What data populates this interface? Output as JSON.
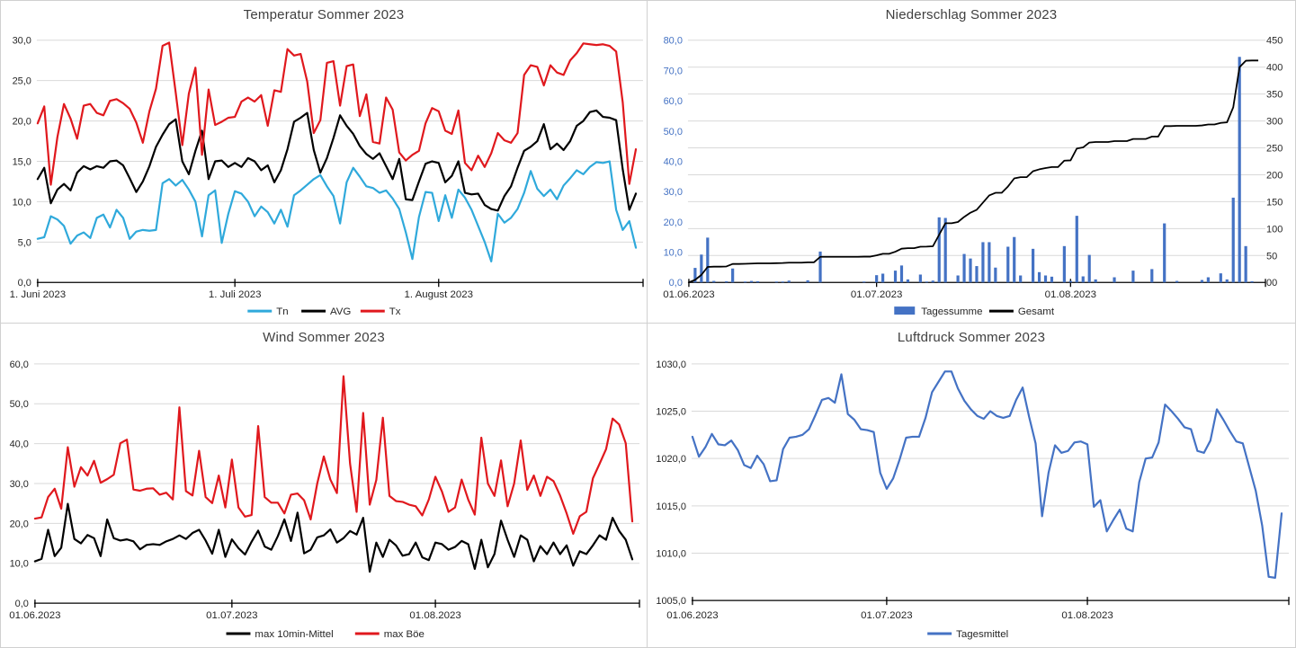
{
  "page": {
    "background": "#ffffff",
    "grid": "2x2 weather charts"
  },
  "colors": {
    "grid_line": "#d9d9d9",
    "axis_line": "#000000",
    "title_text": "#404040",
    "tick_text": "#262626",
    "tn_cyan": "#2fa9db",
    "avg_black": "#000000",
    "tx_red": "#e0181d",
    "bar_blue": "#4472c4",
    "pressure_blue": "#4472c4"
  },
  "chart_data": [
    {
      "id": "temperatur",
      "type": "line",
      "title": "Temperatur Sommer 2023",
      "x": {
        "tick_labels": [
          "1. Juni 2023",
          "1. Juli 2023",
          "1. August 2023"
        ],
        "tick_days": [
          0,
          30,
          61
        ],
        "n_days": 92
      },
      "y": {
        "min": 0,
        "max": 30,
        "grid_intervals": 6,
        "tick_labels": [
          "0,0",
          "5,0",
          "10,0",
          "15,0",
          "20,0",
          "25,0",
          "30,0"
        ]
      },
      "legend": [
        {
          "label": "Tn",
          "color": "#2fa9db",
          "marker": "line"
        },
        {
          "label": "AVG",
          "color": "#000000",
          "marker": "line"
        },
        {
          "label": "Tx",
          "color": "#e0181d",
          "marker": "line"
        }
      ],
      "series": [
        {
          "name": "Tn",
          "color": "#2fa9db",
          "width": 2.2,
          "values": [
            5.4,
            5.6,
            8.2,
            7.8,
            7.0,
            4.8,
            5.8,
            6.2,
            5.5,
            8.0,
            8.4,
            6.8,
            9.0,
            8.0,
            5.4,
            6.3,
            6.5,
            6.4,
            6.5,
            12.3,
            12.8,
            12.0,
            12.7,
            11.5,
            10.0,
            5.7,
            10.8,
            11.4,
            4.9,
            8.5,
            11.3,
            11.0,
            10.0,
            8.2,
            9.4,
            8.7,
            7.3,
            9.0,
            6.9,
            10.8,
            11.4,
            12.1,
            12.8,
            13.3,
            11.9,
            10.7,
            7.3,
            12.4,
            14.2,
            13.1,
            11.9,
            11.7,
            11.1,
            11.4,
            10.4,
            9.1,
            6.2,
            2.9,
            8.1,
            11.2,
            11.1,
            7.6,
            10.8,
            8.0,
            11.5,
            10.5,
            9.0,
            7.0,
            5.0,
            2.6,
            8.5,
            7.4,
            8.0,
            9.1,
            11.1,
            13.8,
            11.6,
            10.7,
            11.5,
            10.3,
            12.0,
            12.9,
            13.9,
            13.4,
            14.3,
            14.9,
            14.8,
            15.0,
            9.0,
            6.5,
            7.6,
            4.3
          ]
        },
        {
          "name": "AVG",
          "color": "#000000",
          "width": 2.2,
          "values": [
            12.8,
            14.2,
            9.8,
            11.5,
            12.2,
            11.4,
            13.6,
            14.4,
            14.0,
            14.4,
            14.2,
            15.0,
            15.1,
            14.5,
            12.9,
            11.2,
            12.5,
            14.4,
            16.8,
            18.3,
            19.6,
            20.2,
            15.0,
            13.4,
            16.3,
            18.8,
            12.8,
            15.0,
            15.1,
            14.3,
            14.8,
            14.3,
            15.4,
            15.0,
            13.9,
            14.5,
            12.4,
            13.9,
            16.5,
            19.9,
            20.4,
            21.0,
            16.4,
            13.6,
            15.4,
            17.9,
            20.7,
            19.4,
            18.4,
            16.9,
            15.9,
            15.3,
            16.0,
            14.4,
            12.8,
            15.3,
            10.3,
            10.2,
            12.5,
            14.7,
            15.0,
            14.8,
            12.4,
            13.2,
            15.0,
            11.1,
            10.9,
            11.0,
            9.6,
            9.1,
            8.9,
            10.7,
            11.9,
            14.2,
            16.3,
            16.8,
            17.5,
            19.6,
            16.5,
            17.2,
            16.4,
            17.5,
            19.4,
            20.0,
            21.1,
            21.3,
            20.5,
            20.4,
            20.1,
            14.0,
            9.0,
            11.0
          ]
        },
        {
          "name": "Tx",
          "color": "#e0181d",
          "width": 2.2,
          "values": [
            19.7,
            21.8,
            12.1,
            18.0,
            22.1,
            20.3,
            17.8,
            21.9,
            22.1,
            21.0,
            20.7,
            22.5,
            22.7,
            22.2,
            21.5,
            19.8,
            17.3,
            21.2,
            24.0,
            29.3,
            29.7,
            23.5,
            17.0,
            23.4,
            26.6,
            15.8,
            23.9,
            19.5,
            19.9,
            20.4,
            20.5,
            22.4,
            22.9,
            22.4,
            23.2,
            19.4,
            23.8,
            23.6,
            28.9,
            28.1,
            28.3,
            24.9,
            18.5,
            20.1,
            27.2,
            27.4,
            21.9,
            26.8,
            27.0,
            20.6,
            23.3,
            17.4,
            17.2,
            22.9,
            21.4,
            16.1,
            15.1,
            15.8,
            16.3,
            19.7,
            21.6,
            21.2,
            18.8,
            18.4,
            21.3,
            14.8,
            13.9,
            15.7,
            14.3,
            16.0,
            18.5,
            17.6,
            17.3,
            18.5,
            25.7,
            26.9,
            26.7,
            24.4,
            26.9,
            26.0,
            25.7,
            27.5,
            28.4,
            29.6,
            29.5,
            29.4,
            29.5,
            29.3,
            28.6,
            22.3,
            12.2,
            16.5
          ]
        }
      ]
    },
    {
      "id": "niederschlag",
      "type": "bar+cumulative-line",
      "title": "Niederschlag Sommer 2023",
      "x": {
        "tick_labels": [
          "01.06.2023",
          "01.07.2023",
          "01.08.2023"
        ],
        "tick_days": [
          0,
          30,
          61
        ],
        "n_days": 92
      },
      "y_left": {
        "min": 0,
        "max": 80,
        "label_color": "#4472c4",
        "tick_labels": [
          "0,0",
          "10,0",
          "20,0",
          "30,0",
          "40,0",
          "50,0",
          "60,0",
          "70,0",
          "80,0"
        ]
      },
      "y_right": {
        "min": 0,
        "max": 450,
        "grid_intervals": 9,
        "tick_labels": [
          "00",
          "50",
          "100",
          "150",
          "200",
          "250",
          "300",
          "350",
          "400",
          "450"
        ]
      },
      "legend": [
        {
          "label": "Tagessumme",
          "color": "#4472c4",
          "marker": "rect"
        },
        {
          "label": "Gesamt",
          "color": "#000000",
          "marker": "line"
        }
      ],
      "bars": {
        "name": "Tagessumme",
        "color": "#4472c4",
        "axis": "left",
        "values": [
          0,
          4.8,
          9.2,
          14.8,
          0.5,
          0,
          0.4,
          4.6,
          0,
          0.3,
          0.5,
          0.4,
          0,
          0,
          0.3,
          0.3,
          0.6,
          0,
          0,
          0.7,
          0,
          10.2,
          0,
          0,
          0,
          0,
          0,
          0,
          0.3,
          0,
          2.4,
          2.9,
          0,
          3.9,
          5.6,
          1.0,
          0,
          2.6,
          0.3,
          0.6,
          21.5,
          21.3,
          0,
          2.3,
          9.4,
          7.9,
          5.4,
          13.3,
          13.3,
          4.9,
          0,
          11.8,
          15.0,
          2.3,
          0,
          11.1,
          3.4,
          2.3,
          1.9,
          0,
          12.0,
          0.5,
          22.0,
          2.0,
          9.1,
          1.0,
          0,
          0,
          1.7,
          0,
          0,
          3.9,
          0,
          0,
          4.4,
          0,
          19.5,
          0,
          0.5,
          0,
          0,
          0,
          0.8,
          1.7,
          0,
          3.0,
          1.0,
          28.0,
          74.5,
          12.0,
          0.4,
          0
        ]
      },
      "cumulative_line": {
        "name": "Gesamt",
        "color": "#000000",
        "axis": "right",
        "width": 1.8,
        "derivation": "running sum of Tagessumme values",
        "final_total": 412.3
      }
    },
    {
      "id": "wind",
      "type": "line",
      "title": "Wind Sommer 2023",
      "x": {
        "tick_labels": [
          "01.06.2023",
          "01.07.2023",
          "01.08.2023"
        ],
        "tick_days": [
          0,
          30,
          61
        ],
        "n_days": 92
      },
      "y": {
        "min": 0,
        "max": 60,
        "grid_intervals": 6,
        "tick_labels": [
          "0,0",
          "10,0",
          "20,0",
          "30,0",
          "40,0",
          "50,0",
          "60,0"
        ]
      },
      "legend": [
        {
          "label": "max 10min-Mittel",
          "color": "#000000",
          "marker": "line"
        },
        {
          "label": "max Böe",
          "color": "#e0181d",
          "marker": "line"
        }
      ],
      "series": [
        {
          "name": "max 10min-Mittel",
          "color": "#000000",
          "width": 2.2,
          "values": [
            10.5,
            11.1,
            18.4,
            11.8,
            13.9,
            24.9,
            16.1,
            15.0,
            17.1,
            16.3,
            11.8,
            21.0,
            16.3,
            15.7,
            16.0,
            15.5,
            13.5,
            14.6,
            14.8,
            14.6,
            15.5,
            16.1,
            17.0,
            16.1,
            17.6,
            18.4,
            15.7,
            12.4,
            18.4,
            11.6,
            16.0,
            13.8,
            12.2,
            15.4,
            18.2,
            14.2,
            13.4,
            16.8,
            21.0,
            15.6,
            22.7,
            12.5,
            13.4,
            16.5,
            17.0,
            18.5,
            15.2,
            16.3,
            18.1,
            17.2,
            21.4,
            7.9,
            15.2,
            11.6,
            15.9,
            14.5,
            11.9,
            12.3,
            15.2,
            11.5,
            10.8,
            15.2,
            14.8,
            13.4,
            14.1,
            15.6,
            14.8,
            8.6,
            15.9,
            9.0,
            12.3,
            20.7,
            15.9,
            11.6,
            17.0,
            15.9,
            10.5,
            14.3,
            12.3,
            15.2,
            12.3,
            14.5,
            9.4,
            13.0,
            12.3,
            14.5,
            17.0,
            15.9,
            21.4,
            18.1,
            15.9,
            11.0
          ]
        },
        {
          "name": "max Böe",
          "color": "#e0181d",
          "width": 2.2,
          "values": [
            21.2,
            21.5,
            26.6,
            28.7,
            23.7,
            39.1,
            29.2,
            34.1,
            32.0,
            35.7,
            30.2,
            31.1,
            32.2,
            40.1,
            41.0,
            28.5,
            28.2,
            28.7,
            28.8,
            27.2,
            27.7,
            26.0,
            49.1,
            28.1,
            27.0,
            38.2,
            26.6,
            25.1,
            32.0,
            24.0,
            36.0,
            24.0,
            21.7,
            22.1,
            44.4,
            26.6,
            25.2,
            25.2,
            22.5,
            27.2,
            27.5,
            25.8,
            21.0,
            30.0,
            36.8,
            31.0,
            27.6,
            56.9,
            35.0,
            22.9,
            47.7,
            24.7,
            30.9,
            46.5,
            26.9,
            25.6,
            25.4,
            24.7,
            24.3,
            22.0,
            26.0,
            31.7,
            28.0,
            22.9,
            24.0,
            31.0,
            26.0,
            22.2,
            41.5,
            30.0,
            26.9,
            35.8,
            24.3,
            30.0,
            40.8,
            28.4,
            32.0,
            26.9,
            31.7,
            30.6,
            27.0,
            22.5,
            17.4,
            21.8,
            22.9,
            31.3,
            34.9,
            38.6,
            46.3,
            44.8,
            40.1,
            20.5
          ]
        }
      ]
    },
    {
      "id": "luftdruck",
      "type": "line",
      "title": "Luftdruck Sommer 2023",
      "x": {
        "tick_labels": [
          "01.06.2023",
          "01.07.2023",
          "01.08.2023"
        ],
        "tick_days": [
          0,
          30,
          61
        ],
        "n_days": 92
      },
      "y": {
        "min": 1005,
        "max": 1030,
        "grid_intervals": 5,
        "tick_labels": [
          "1005,0",
          "1010,0",
          "1015,0",
          "1020,0",
          "1025,0",
          "1030,0"
        ]
      },
      "legend": [
        {
          "label": "Tagesmittel",
          "color": "#4472c4",
          "marker": "line"
        }
      ],
      "series": [
        {
          "name": "Tagesmittel",
          "color": "#4472c4",
          "width": 2.2,
          "values": [
            1022.3,
            1020.2,
            1021.2,
            1022.6,
            1021.5,
            1021.4,
            1021.9,
            1020.9,
            1019.3,
            1019.0,
            1020.3,
            1019.4,
            1017.6,
            1017.7,
            1021.0,
            1022.2,
            1022.3,
            1022.5,
            1023.1,
            1024.6,
            1026.2,
            1026.4,
            1025.9,
            1028.9,
            1024.7,
            1024.1,
            1023.1,
            1023.0,
            1022.8,
            1018.5,
            1016.8,
            1017.9,
            1019.9,
            1022.2,
            1022.3,
            1022.3,
            1024.3,
            1027.0,
            1028.1,
            1029.2,
            1029.2,
            1027.4,
            1026.1,
            1025.2,
            1024.5,
            1024.2,
            1025.0,
            1024.5,
            1024.3,
            1024.5,
            1026.2,
            1027.5,
            1024.4,
            1021.6,
            1013.9,
            1018.5,
            1021.4,
            1020.6,
            1020.8,
            1021.7,
            1021.8,
            1021.5,
            1014.9,
            1015.6,
            1012.3,
            1013.5,
            1014.6,
            1012.6,
            1012.3,
            1017.5,
            1020.0,
            1020.1,
            1021.7,
            1025.7,
            1025.0,
            1024.2,
            1023.3,
            1023.1,
            1020.8,
            1020.6,
            1021.9,
            1025.2,
            1024.1,
            1022.9,
            1021.8,
            1021.6,
            1019.1,
            1016.6,
            1012.9,
            1007.5,
            1007.4,
            1014.2
          ]
        }
      ]
    }
  ]
}
